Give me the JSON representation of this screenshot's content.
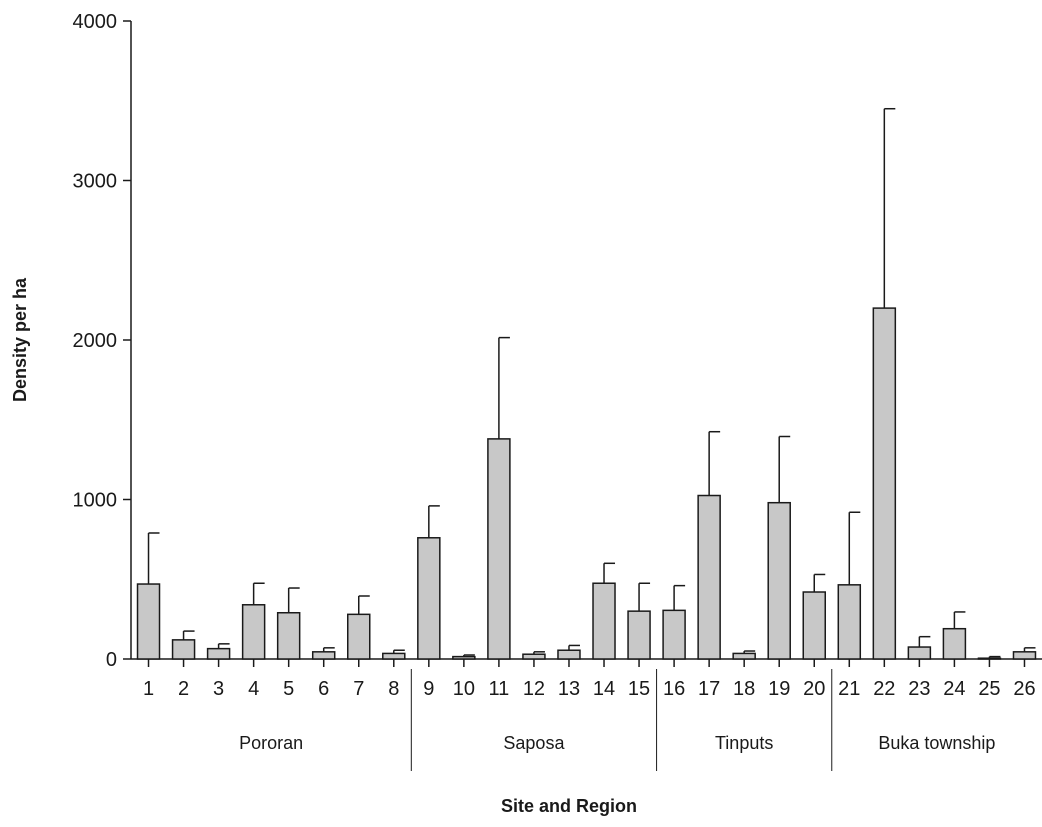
{
  "chart_data": {
    "type": "bar",
    "title": "",
    "xlabel": "Site and Region",
    "ylabel": "Density per ha",
    "ylim": [
      0,
      4000
    ],
    "yticks": [
      0,
      1000,
      2000,
      3000,
      4000
    ],
    "grid": false,
    "bar_color": "#c8c8c8",
    "categories": [
      "1",
      "2",
      "3",
      "4",
      "5",
      "6",
      "7",
      "8",
      "9",
      "10",
      "11",
      "12",
      "13",
      "14",
      "15",
      "16",
      "17",
      "18",
      "19",
      "20",
      "21",
      "22",
      "23",
      "24",
      "25",
      "26"
    ],
    "values": [
      470,
      120,
      65,
      340,
      290,
      45,
      280,
      35,
      760,
      15,
      1380,
      30,
      55,
      475,
      300,
      305,
      1025,
      35,
      980,
      420,
      465,
      2200,
      75,
      190,
      5,
      45
    ],
    "error_upper": [
      790,
      175,
      95,
      475,
      445,
      70,
      395,
      55,
      960,
      25,
      2015,
      45,
      85,
      600,
      475,
      460,
      1425,
      50,
      1395,
      530,
      920,
      3450,
      140,
      295,
      15,
      70
    ],
    "groups": [
      {
        "label": "Pororan",
        "categories": [
          "1",
          "2",
          "3",
          "4",
          "5",
          "6",
          "7",
          "8"
        ]
      },
      {
        "label": "Saposa",
        "categories": [
          "9",
          "10",
          "11",
          "12",
          "13",
          "14",
          "15"
        ]
      },
      {
        "label": "Tinputs",
        "categories": [
          "16",
          "17",
          "18",
          "19",
          "20"
        ]
      },
      {
        "label": "Buka township",
        "categories": [
          "21",
          "22",
          "23",
          "24",
          "25",
          "26"
        ]
      }
    ]
  }
}
